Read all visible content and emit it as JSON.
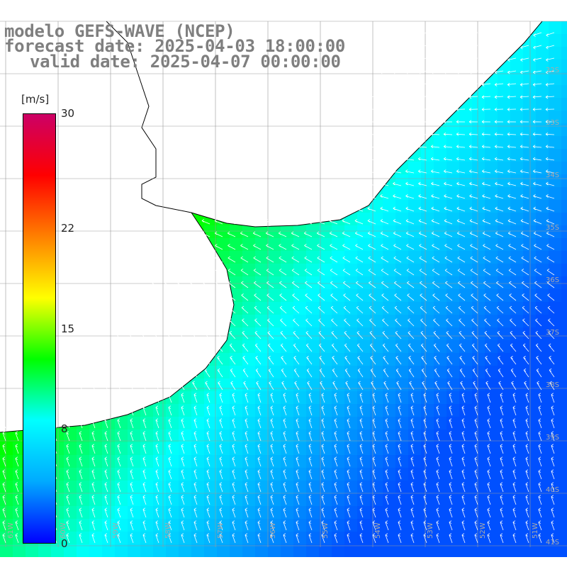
{
  "header": {
    "line1": "modelo GEFS-WAVE (NCEP)",
    "line2": "forecast date: 2025-04-03 18:00:00",
    "line3": "valid date: 2025-04-07 00:00:00"
  },
  "colorbar": {
    "unit": "[m/s]",
    "ticks": [
      {
        "value": 30,
        "label": "30"
      },
      {
        "value": 22,
        "label": "22"
      },
      {
        "value": 15,
        "label": "15"
      },
      {
        "value": 8,
        "label": "8"
      },
      {
        "value": 0,
        "label": "0"
      }
    ],
    "range": [
      0,
      30
    ],
    "colors": [
      "#0000ff",
      "#00aaff",
      "#00ffff",
      "#00ff00",
      "#ffff00",
      "#ff8000",
      "#ff0000",
      "#cc0066"
    ]
  },
  "map": {
    "lat_labels": [
      "32S",
      "33S",
      "34S",
      "35S",
      "36S",
      "37S",
      "38S",
      "39S",
      "40S",
      "41S"
    ],
    "lon_labels": [
      "61W",
      "60W",
      "59W",
      "58W",
      "57W",
      "56W",
      "55W",
      "54W",
      "53W",
      "52W",
      "51W",
      "50W"
    ],
    "land_color": "#ffffff",
    "grid_color": "#999999",
    "coast_color": "#000000",
    "arrow_color": "#ffffff"
  }
}
